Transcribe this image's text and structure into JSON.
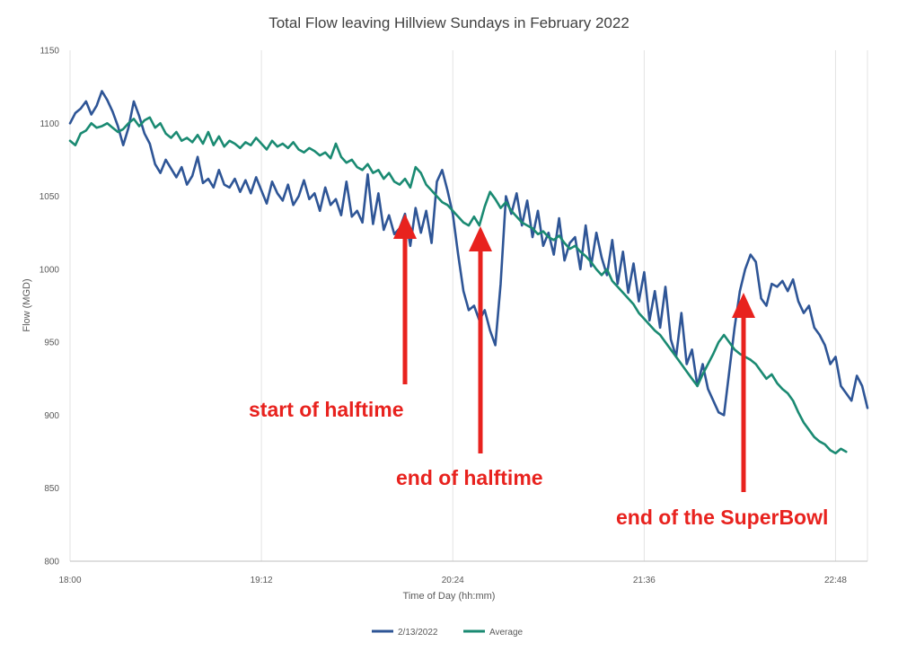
{
  "chart_data": {
    "type": "line",
    "title": "Total Flow leaving Hillview  Sundays in February 2022",
    "xlabel": "Time of Day (hh:mm)",
    "ylabel": "Flow (MGD)",
    "ylim": [
      800,
      1150
    ],
    "yticks": [
      "800",
      "850",
      "900",
      "950",
      "1000",
      "1050",
      "1100",
      "1150"
    ],
    "xlim_minutes": [
      0,
      300
    ],
    "xticks": [
      {
        "label": "18:00",
        "minute": 0
      },
      {
        "label": "19:12",
        "minute": 72
      },
      {
        "label": "20:24",
        "minute": 144
      },
      {
        "label": "21:36",
        "minute": 216
      },
      {
        "label": "22:48",
        "minute": 288
      }
    ],
    "grid": "vertical",
    "legend_position": "bottom",
    "series": [
      {
        "name": "2/13/2022",
        "color": "#2e5596",
        "minutes": [
          0,
          2,
          4,
          6,
          8,
          10,
          12,
          14,
          16,
          18,
          20,
          22,
          24,
          26,
          28,
          30,
          32,
          34,
          36,
          38,
          40,
          42,
          44,
          46,
          48,
          50,
          52,
          54,
          56,
          58,
          60,
          62,
          64,
          66,
          68,
          70,
          72,
          74,
          76,
          78,
          80,
          82,
          84,
          86,
          88,
          90,
          92,
          94,
          96,
          98,
          100,
          102,
          104,
          106,
          108,
          110,
          112,
          114,
          116,
          118,
          120,
          122,
          124,
          126,
          128,
          130,
          132,
          134,
          136,
          138,
          140,
          142,
          144,
          146,
          148,
          150,
          152,
          154,
          156,
          158,
          160,
          162,
          164,
          166,
          168,
          170,
          172,
          174,
          176,
          178,
          180,
          182,
          184,
          186,
          188,
          190,
          192,
          194,
          196,
          198,
          200,
          202,
          204,
          206,
          208,
          210,
          212,
          214,
          216,
          218,
          220,
          222,
          224,
          226,
          228,
          230,
          232,
          234,
          236,
          238,
          240,
          242,
          244,
          246,
          248,
          250,
          252,
          254,
          256,
          258,
          260,
          262,
          264,
          266,
          268,
          270,
          272,
          274,
          276,
          278,
          280,
          282,
          284,
          286,
          288,
          290,
          292,
          294,
          296,
          298,
          300
        ],
        "values": [
          1100,
          1107,
          1110,
          1115,
          1106,
          1112,
          1122,
          1116,
          1108,
          1098,
          1085,
          1097,
          1115,
          1105,
          1093,
          1086,
          1072,
          1066,
          1075,
          1069,
          1063,
          1070,
          1058,
          1064,
          1077,
          1059,
          1062,
          1056,
          1068,
          1058,
          1056,
          1062,
          1053,
          1061,
          1052,
          1063,
          1054,
          1045,
          1060,
          1052,
          1047,
          1058,
          1044,
          1050,
          1061,
          1048,
          1052,
          1040,
          1056,
          1044,
          1048,
          1037,
          1060,
          1036,
          1040,
          1032,
          1065,
          1031,
          1052,
          1027,
          1037,
          1024,
          1028,
          1038,
          1016,
          1042,
          1025,
          1040,
          1018,
          1060,
          1068,
          1054,
          1038,
          1010,
          985,
          972,
          975,
          965,
          972,
          958,
          948,
          990,
          1050,
          1038,
          1052,
          1030,
          1047,
          1022,
          1040,
          1016,
          1025,
          1010,
          1035,
          1006,
          1018,
          1022,
          1000,
          1030,
          1002,
          1025,
          1008,
          996,
          1020,
          990,
          1012,
          984,
          1004,
          978,
          998,
          965,
          985,
          960,
          988,
          952,
          940,
          970,
          935,
          945,
          920,
          935,
          918,
          910,
          902,
          900,
          930,
          960,
          985,
          1000,
          1010,
          1005,
          980,
          975,
          990,
          988,
          992,
          985,
          993,
          978,
          970,
          975,
          960,
          955,
          948,
          935,
          940,
          920,
          915,
          910,
          927,
          920,
          905
        ]
      },
      {
        "name": "Average",
        "color": "#1a8a72",
        "minutes": [
          0,
          2,
          4,
          6,
          8,
          10,
          12,
          14,
          16,
          18,
          20,
          22,
          24,
          26,
          28,
          30,
          32,
          34,
          36,
          38,
          40,
          42,
          44,
          46,
          48,
          50,
          52,
          54,
          56,
          58,
          60,
          62,
          64,
          66,
          68,
          70,
          72,
          74,
          76,
          78,
          80,
          82,
          84,
          86,
          88,
          90,
          92,
          94,
          96,
          98,
          100,
          102,
          104,
          106,
          108,
          110,
          112,
          114,
          116,
          118,
          120,
          122,
          124,
          126,
          128,
          130,
          132,
          134,
          136,
          138,
          140,
          142,
          144,
          146,
          148,
          150,
          152,
          154,
          156,
          158,
          160,
          162,
          164,
          166,
          168,
          170,
          172,
          174,
          176,
          178,
          180,
          182,
          184,
          186,
          188,
          190,
          192,
          194,
          196,
          198,
          200,
          202,
          204,
          206,
          208,
          210,
          212,
          214,
          216,
          218,
          220,
          222,
          224,
          226,
          228,
          230,
          232,
          234,
          236,
          238,
          240,
          242,
          244,
          246,
          248,
          250,
          252,
          254,
          256,
          258,
          260,
          262,
          264,
          266,
          268,
          270,
          272,
          274,
          276,
          278,
          280,
          282,
          284,
          286,
          288,
          290,
          292,
          294,
          296,
          298,
          300
        ],
        "values": [
          1088,
          1085,
          1093,
          1095,
          1100,
          1097,
          1098,
          1100,
          1097,
          1094,
          1096,
          1100,
          1103,
          1098,
          1102,
          1104,
          1097,
          1100,
          1093,
          1090,
          1094,
          1088,
          1090,
          1087,
          1092,
          1086,
          1094,
          1085,
          1091,
          1084,
          1088,
          1086,
          1083,
          1087,
          1085,
          1090,
          1086,
          1082,
          1088,
          1084,
          1086,
          1083,
          1087,
          1082,
          1080,
          1083,
          1081,
          1078,
          1080,
          1076,
          1086,
          1077,
          1073,
          1075,
          1070,
          1068,
          1072,
          1066,
          1068,
          1062,
          1066,
          1060,
          1058,
          1062,
          1056,
          1070,
          1066,
          1058,
          1054,
          1050,
          1046,
          1044,
          1040,
          1036,
          1032,
          1030,
          1036,
          1030,
          1043,
          1053,
          1048,
          1042,
          1046,
          1040,
          1036,
          1032,
          1030,
          1028,
          1024,
          1026,
          1022,
          1020,
          1023,
          1018,
          1014,
          1016,
          1012,
          1009,
          1005,
          1000,
          996,
          1000,
          992,
          988,
          984,
          980,
          976,
          970,
          966,
          962,
          958,
          955,
          950,
          945,
          940,
          935,
          930,
          925,
          920,
          928,
          935,
          942,
          950,
          955,
          950,
          945,
          942,
          940,
          938,
          935,
          930,
          925,
          928,
          922,
          918,
          915,
          910,
          902,
          895,
          890,
          885,
          882,
          880,
          876,
          874,
          877,
          875
        ]
      }
    ],
    "annotations": [
      {
        "label": "start of halftime",
        "target_minute": 124
      },
      {
        "label": "end of halftime",
        "target_minute": 151
      },
      {
        "label": "end of the SuperBowl",
        "target_minute": 250
      }
    ]
  }
}
